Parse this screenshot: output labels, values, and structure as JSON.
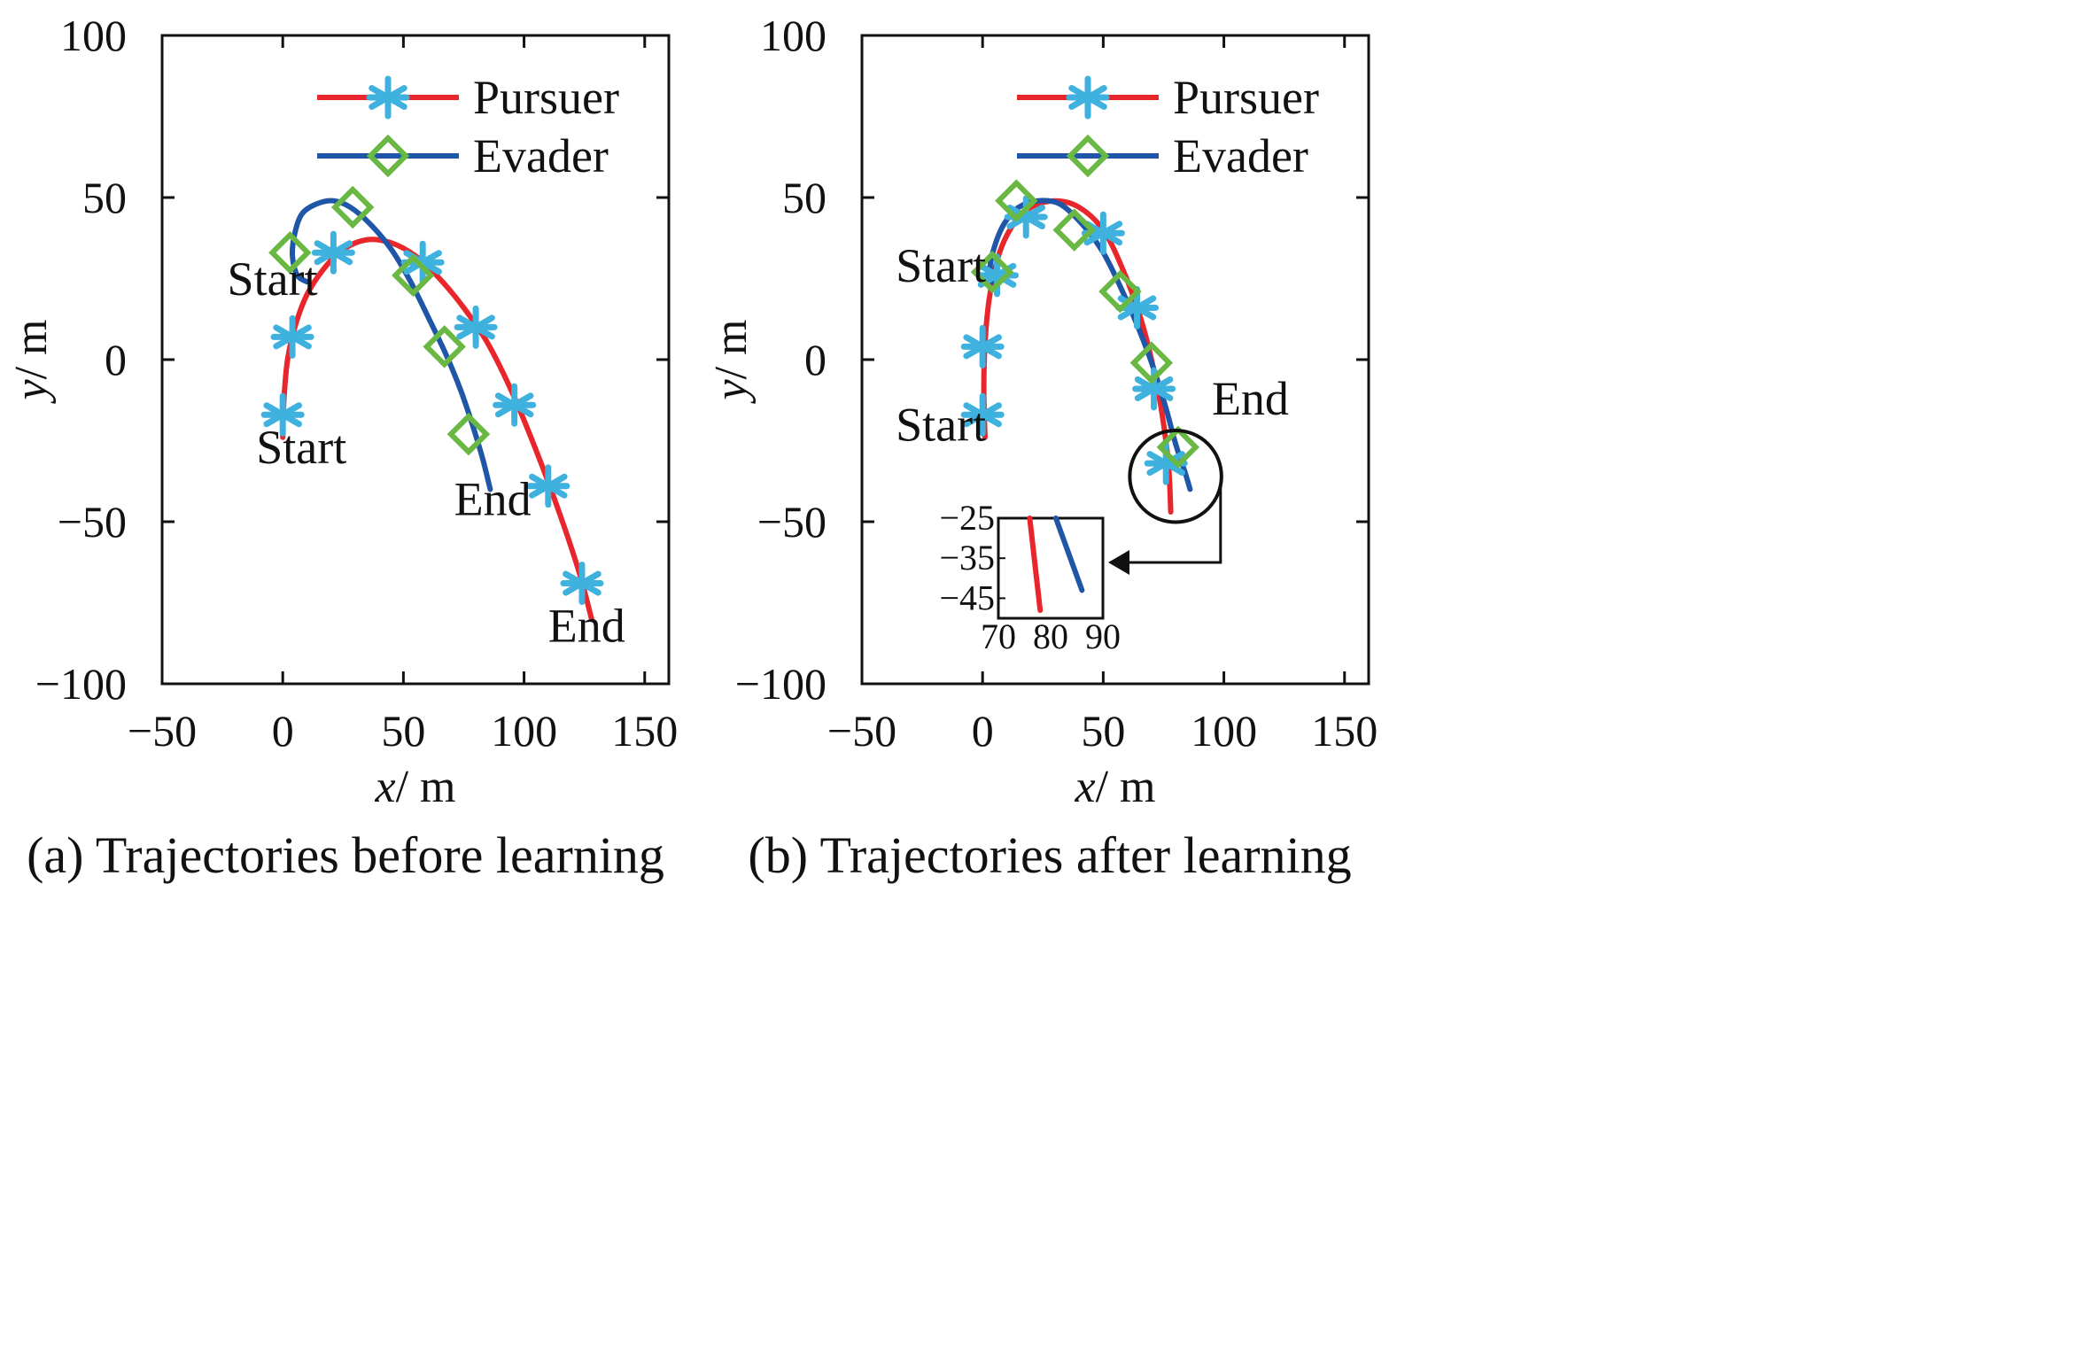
{
  "chart_data": [
    {
      "type": "line",
      "caption": "(a)  Trajectories before learning",
      "xlabel_var": "x",
      "xlabel_unit": "/ m",
      "ylabel_var": "y",
      "ylabel_unit": "/ m",
      "xlim": [
        -50,
        160
      ],
      "ylim": [
        -100,
        100
      ],
      "xticks": [
        -50,
        0,
        50,
        100,
        150
      ],
      "yticks": [
        -100,
        -50,
        0,
        50,
        100
      ],
      "legend": {
        "position": "top-right",
        "entries": [
          "Pursuer",
          "Evader"
        ]
      },
      "series": [
        {
          "name": "Pursuer",
          "color": "#e8262b",
          "marker": "asterisk",
          "marker_color": "#3fb1de",
          "x": [
            0,
            0.5,
            2,
            5,
            10,
            17,
            25,
            35,
            45,
            55,
            65,
            75,
            85,
            95,
            105,
            115,
            123,
            128
          ],
          "y": [
            -24,
            -12,
            0,
            10,
            20,
            28,
            34,
            37,
            36,
            32,
            25,
            16,
            5,
            -10,
            -28,
            -48,
            -66,
            -80
          ],
          "markers": [
            [
              0,
              -17
            ],
            [
              4,
              7
            ],
            [
              21,
              33
            ],
            [
              58,
              30
            ],
            [
              80,
              10
            ],
            [
              96,
              -14
            ],
            [
              110,
              -39
            ],
            [
              124,
              -69
            ]
          ]
        },
        {
          "name": "Evader",
          "color": "#1f56a8",
          "marker": "diamond",
          "marker_color": "#6ab844",
          "x": [
            10,
            6,
            4,
            5,
            8,
            14,
            21,
            28,
            36,
            45,
            53,
            61,
            68,
            74,
            79,
            83,
            86
          ],
          "y": [
            24,
            26,
            32,
            39,
            45,
            48,
            49,
            47,
            42,
            34,
            24,
            12,
            1,
            -10,
            -21,
            -31,
            -40
          ],
          "markers": [
            [
              3,
              33
            ],
            [
              29,
              47
            ],
            [
              54,
              26
            ],
            [
              67,
              4
            ],
            [
              77,
              -23
            ]
          ]
        }
      ],
      "annotations": [
        {
          "text": "Start",
          "x": -23,
          "y": 20
        },
        {
          "text": "Start",
          "x": -11,
          "y": -32
        },
        {
          "text": "End",
          "x": 71,
          "y": -48
        },
        {
          "text": "End",
          "x": 110,
          "y": -87
        }
      ]
    },
    {
      "type": "line",
      "caption": "(b)  Trajectories after learning",
      "xlabel_var": "x",
      "xlabel_unit": "/ m",
      "ylabel_var": "y",
      "ylabel_unit": "/ m",
      "xlim": [
        -50,
        160
      ],
      "ylim": [
        -100,
        100
      ],
      "xticks": [
        -50,
        0,
        50,
        100,
        150
      ],
      "yticks": [
        -100,
        -50,
        0,
        50,
        100
      ],
      "legend": {
        "position": "top-right",
        "entries": [
          "Pursuer",
          "Evader"
        ]
      },
      "series": [
        {
          "name": "Pursuer",
          "color": "#e8262b",
          "marker": "asterisk",
          "marker_color": "#3fb1de",
          "x": [
            1,
            0.5,
            1,
            3,
            7,
            13,
            20,
            30,
            40,
            50,
            58,
            65,
            70,
            74,
            77,
            78
          ],
          "y": [
            -24,
            -10,
            5,
            20,
            33,
            42,
            47,
            49,
            47,
            40,
            28,
            14,
            0,
            -15,
            -32,
            -47
          ],
          "markers": [
            [
              0,
              -17
            ],
            [
              0,
              4
            ],
            [
              6,
              26
            ],
            [
              18,
              44
            ],
            [
              50,
              39
            ],
            [
              64,
              16
            ],
            [
              71,
              -9
            ],
            [
              76,
              -32
            ]
          ]
        },
        {
          "name": "Evader",
          "color": "#1f56a8",
          "marker": "diamond",
          "marker_color": "#6ab844",
          "x": [
            4,
            3,
            5,
            9,
            15,
            23,
            32,
            41,
            50,
            58,
            65,
            71,
            76,
            80,
            84,
            86
          ],
          "y": [
            24,
            28,
            35,
            42,
            47,
            49,
            48,
            42,
            33,
            21,
            9,
            -3,
            -15,
            -26,
            -35,
            -40
          ],
          "markers": [
            [
              4,
              27
            ],
            [
              14,
              49
            ],
            [
              38,
              40
            ],
            [
              57,
              21
            ],
            [
              70,
              -1
            ],
            [
              81,
              -27
            ]
          ]
        }
      ],
      "annotations": [
        {
          "text": "Start",
          "x": -36,
          "y": 24
        },
        {
          "text": "Start",
          "x": -36,
          "y": -25
        },
        {
          "text": "End",
          "x": 95,
          "y": -17
        }
      ],
      "zoom_circle": {
        "cx": 80,
        "cy": -36,
        "r": 19
      },
      "inset": {
        "xlim": [
          70,
          90
        ],
        "ylim": [
          -50,
          -25
        ],
        "xticks": [
          70,
          80,
          90
        ],
        "yticks": [
          -25,
          -35,
          -45
        ],
        "series": [
          {
            "name": "Pursuer",
            "x": [
              76,
              78
            ],
            "y": [
              -25,
              -48
            ]
          },
          {
            "name": "Evader",
            "x": [
              81,
              86
            ],
            "y": [
              -25,
              -43
            ]
          }
        ]
      }
    }
  ]
}
